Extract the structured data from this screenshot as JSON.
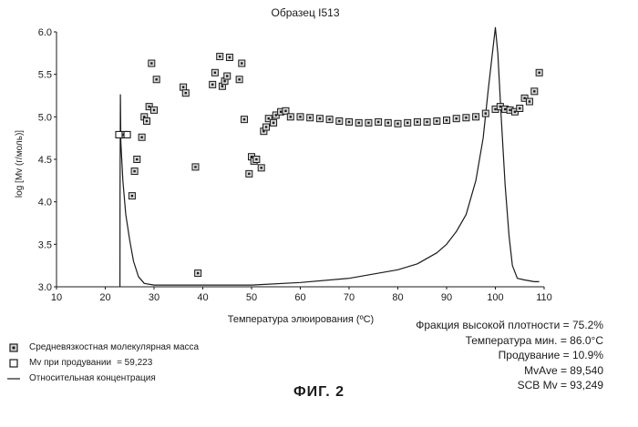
{
  "chart_data": {
    "type": "scatter",
    "title": "Образец I513",
    "xlabel": "Температура элюирования (ºC)",
    "ylabel": "log [Mv (г/моль)]",
    "xlim": [
      10,
      110
    ],
    "ylim": [
      3.0,
      6.0
    ],
    "x_ticks": [
      "10",
      "20",
      "30",
      "40",
      "50",
      "60",
      "70",
      "80",
      "90",
      "100",
      "110"
    ],
    "y_ticks": [
      "3.0",
      "3.5",
      "4.0",
      "4.5",
      "5.0",
      "5.5",
      "6.0"
    ],
    "grid": false,
    "series": [
      {
        "name": "Средневязкостная молекулярная масса",
        "kind": "scatter",
        "points": [
          [
            23.8,
            4.79
          ],
          [
            25.5,
            4.07
          ],
          [
            26.0,
            4.36
          ],
          [
            26.5,
            4.5
          ],
          [
            27.5,
            4.76
          ],
          [
            28.0,
            5.0
          ],
          [
            28.5,
            4.95
          ],
          [
            29.0,
            5.12
          ],
          [
            29.5,
            5.63
          ],
          [
            30.0,
            5.08
          ],
          [
            30.5,
            5.44
          ],
          [
            36.0,
            5.35
          ],
          [
            36.5,
            5.28
          ],
          [
            38.5,
            4.41
          ],
          [
            39.0,
            3.16
          ],
          [
            42.0,
            5.38
          ],
          [
            42.5,
            5.52
          ],
          [
            43.5,
            5.71
          ],
          [
            44.0,
            5.36
          ],
          [
            44.5,
            5.42
          ],
          [
            45.0,
            5.48
          ],
          [
            45.5,
            5.7
          ],
          [
            47.5,
            5.44
          ],
          [
            48.0,
            5.63
          ],
          [
            48.5,
            4.97
          ],
          [
            49.5,
            4.33
          ],
          [
            50.0,
            4.53
          ],
          [
            50.5,
            4.48
          ],
          [
            51.0,
            4.5
          ],
          [
            52.0,
            4.4
          ],
          [
            52.5,
            4.83
          ],
          [
            53.0,
            4.88
          ],
          [
            53.5,
            4.98
          ],
          [
            54.5,
            4.93
          ],
          [
            55.0,
            5.02
          ],
          [
            56.0,
            5.06
          ],
          [
            57.0,
            5.07
          ],
          [
            58.0,
            5.0
          ],
          [
            60.0,
            5.0
          ],
          [
            62.0,
            4.99
          ],
          [
            64.0,
            4.98
          ],
          [
            66.0,
            4.97
          ],
          [
            68.0,
            4.95
          ],
          [
            70.0,
            4.94
          ],
          [
            72.0,
            4.93
          ],
          [
            74.0,
            4.93
          ],
          [
            76.0,
            4.94
          ],
          [
            78.0,
            4.93
          ],
          [
            80.0,
            4.92
          ],
          [
            82.0,
            4.93
          ],
          [
            84.0,
            4.94
          ],
          [
            86.0,
            4.94
          ],
          [
            88.0,
            4.95
          ],
          [
            90.0,
            4.96
          ],
          [
            92.0,
            4.98
          ],
          [
            94.0,
            4.99
          ],
          [
            96.0,
            5.0
          ],
          [
            98.0,
            5.04
          ],
          [
            100.0,
            5.09
          ],
          [
            101.0,
            5.12
          ],
          [
            102.0,
            5.09
          ],
          [
            103.0,
            5.08
          ],
          [
            104.0,
            5.06
          ],
          [
            105.0,
            5.1
          ],
          [
            106.0,
            5.22
          ],
          [
            107.0,
            5.18
          ],
          [
            108.0,
            5.3
          ],
          [
            109.0,
            5.52
          ]
        ]
      },
      {
        "name": "Mv при продувании",
        "kind": "scatter",
        "points": [
          [
            22.8,
            4.79
          ],
          [
            24.5,
            4.79
          ]
        ]
      },
      {
        "name": "Относительная концентрация",
        "kind": "line",
        "y_scale": "relative",
        "points": [
          [
            23.0,
            3.0
          ],
          [
            23.02,
            4.05
          ],
          [
            23.1,
            5.26
          ],
          [
            23.2,
            4.7
          ],
          [
            23.6,
            4.25
          ],
          [
            24.2,
            3.85
          ],
          [
            25.0,
            3.55
          ],
          [
            25.8,
            3.3
          ],
          [
            26.8,
            3.12
          ],
          [
            28.0,
            3.04
          ],
          [
            30.0,
            3.02
          ],
          [
            50.0,
            3.02
          ],
          [
            60.0,
            3.05
          ],
          [
            70.0,
            3.1
          ],
          [
            80.0,
            3.2
          ],
          [
            84.0,
            3.27
          ],
          [
            88.0,
            3.4
          ],
          [
            90.0,
            3.5
          ],
          [
            92.0,
            3.65
          ],
          [
            94.0,
            3.85
          ],
          [
            96.0,
            4.25
          ],
          [
            97.5,
            4.75
          ],
          [
            98.5,
            5.3
          ],
          [
            99.5,
            5.8
          ],
          [
            100.0,
            6.05
          ],
          [
            100.5,
            5.75
          ],
          [
            101.2,
            5.0
          ],
          [
            102.0,
            4.2
          ],
          [
            102.8,
            3.6
          ],
          [
            103.5,
            3.25
          ],
          [
            104.5,
            3.1
          ],
          [
            106.0,
            3.08
          ],
          [
            108.0,
            3.06
          ],
          [
            109.0,
            3.06
          ]
        ]
      }
    ]
  },
  "legend": [
    {
      "symbol": "square-marker-icon",
      "label": "Средневязкостная молекулярная масса"
    },
    {
      "symbol": "open-square-icon",
      "label": "Mv при продувании",
      "value": "= 59,223"
    },
    {
      "symbol": "line-icon",
      "label": "Относительная концентрация"
    }
  ],
  "stats": [
    "Фракция высокой плотности = 75.2%",
    "Температура мин. = 86.0°C",
    "Продувание = 10.9%",
    "MvAve = 89,540",
    "SCB Mv = 93,249"
  ],
  "figure_label": "ФИГ. 2",
  "colors": {
    "ink": "#1a1a1a",
    "marker_fill": "#d8d8d8",
    "background": "#ffffff"
  }
}
